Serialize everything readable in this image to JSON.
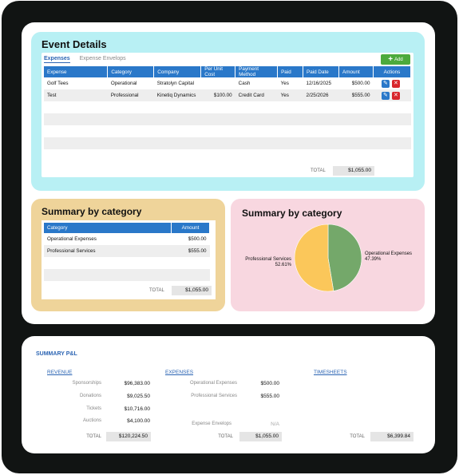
{
  "event_details": {
    "title": "Event Details",
    "tabs": [
      "Expenses",
      "Expense Envelops"
    ],
    "add_label": "Add",
    "columns": [
      "Expense",
      "Category",
      "Company",
      "Per Unit Cost",
      "Payment Method",
      "Paid",
      "Paid Date",
      "Amount",
      "Actions"
    ],
    "rows": [
      {
        "expense": "Golf Tees",
        "category": "Operational",
        "company": "Stratolyn Capital",
        "unit_cost": "",
        "payment": "Cash",
        "paid": "Yes",
        "paid_date": "12/16/2025",
        "amount": "$500.00"
      },
      {
        "expense": "Test",
        "category": "Professional",
        "company": "Kinetiq Dynamics",
        "unit_cost": "$100.00",
        "payment": "Credit Card",
        "paid": "Yes",
        "paid_date": "2/25/2026",
        "amount": "$555.00"
      }
    ],
    "total_label": "TOTAL",
    "total_value": "$1,055.00"
  },
  "summary_table": {
    "title": "Summary by category",
    "columns": [
      "Category",
      "Amount"
    ],
    "rows": [
      {
        "category": "Operational Expenses",
        "amount": "$500.00"
      },
      {
        "category": "Professional Services",
        "amount": "$555.00"
      }
    ],
    "total_label": "TOTAL",
    "total_value": "$1,055.00"
  },
  "summary_pie": {
    "title": "Summary by category"
  },
  "chart_data": {
    "type": "pie",
    "title": "Summary by category",
    "slices": [
      {
        "label": "Operational Expenses",
        "pct_label": "47.39%",
        "value": 47.39,
        "color": "#74a86a"
      },
      {
        "label": "Professional Services",
        "pct_label": "52.61%",
        "value": 52.61,
        "color": "#fbc75a"
      }
    ]
  },
  "pl": {
    "title": "SUMMARY P&L",
    "revenue": {
      "heading": "REVENUE",
      "items": [
        {
          "label": "Sponsorships",
          "value": "$96,383.00"
        },
        {
          "label": "Donations",
          "value": "$9,025.50"
        },
        {
          "label": "Tickets",
          "value": "$10,716.00"
        },
        {
          "label": "Auctions",
          "value": "$4,100.00"
        }
      ],
      "total_label": "TOTAL",
      "total_value": "$120,224.50"
    },
    "expenses": {
      "heading": "EXPENSES",
      "items": [
        {
          "label": "Operational Expenses",
          "value": "$500.00"
        },
        {
          "label": "Professional Services",
          "value": "$555.00"
        }
      ],
      "envelops_label": "Expense Envelops",
      "envelops_value": "N/A",
      "total_label": "TOTAL",
      "total_value": "$1,055.00"
    },
    "timesheets": {
      "heading": "TIMESHEETS",
      "total_label": "TOTAL",
      "total_value": "$6,399.84"
    }
  }
}
